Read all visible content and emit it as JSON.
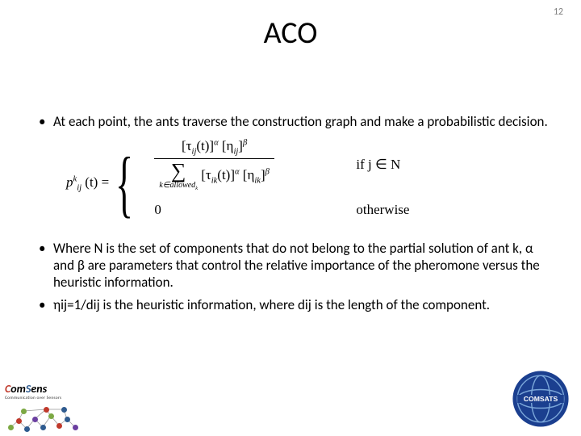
{
  "page_number": "12",
  "title": "ACO",
  "bullets": {
    "b1": "At each point, the ants traverse the construction graph and make a probabilistic decision.",
    "b2": "Where  N is the set of components that do not belong to the partial solution of ant k, α and β are parameters that control the relative importance of the pheromone versus the heuristic information.",
    "b3": "ηij=1/dij  is the heuristic information, where  dij is the length of the component."
  },
  "formula": {
    "lhs_base": "p",
    "lhs_sup": "k",
    "lhs_sub": "ij",
    "lhs_arg": "(t) =",
    "case1": {
      "num_tau": "[τ",
      "num_tau_sub": "ij",
      "num_tau_arg": "(t)]",
      "num_tau_sup": "α",
      "num_eta": "[η",
      "num_eta_sub": "ij",
      "num_eta_close": "]",
      "num_eta_sup": "β",
      "den_sum": "∑",
      "den_sum_sub": "k∈allowed",
      "den_sum_sub2": "k",
      "den_tau": "[τ",
      "den_tau_sub": "ik",
      "den_tau_arg": "(t)]",
      "den_tau_sup": "α",
      "den_eta": "[η",
      "den_eta_sub": "ik",
      "den_eta_close": "]",
      "den_eta_sup": "β",
      "cond": "if  j ∈ N"
    },
    "case2": {
      "expr": "0",
      "cond": "otherwise"
    }
  },
  "brand": {
    "name_html_c": "C",
    "name_html_om": "om",
    "name_html_s": "S",
    "name_html_ens": "ens",
    "tagline": "Communication over Sensors"
  },
  "comsats_label": "COMSATS",
  "colors": {
    "node_colors": [
      "#7ca843",
      "#c0392b",
      "#2f5b8f",
      "#6b3fa0",
      "#2f5b8f",
      "#7ca843",
      "#c0392b",
      "#2f5b8f",
      "#6b3fa0",
      "#7ca843",
      "#c0392b",
      "#2f5b8f"
    ],
    "comsats_blue": "#1b3f8f",
    "comsats_light": "#7aa6d9"
  }
}
